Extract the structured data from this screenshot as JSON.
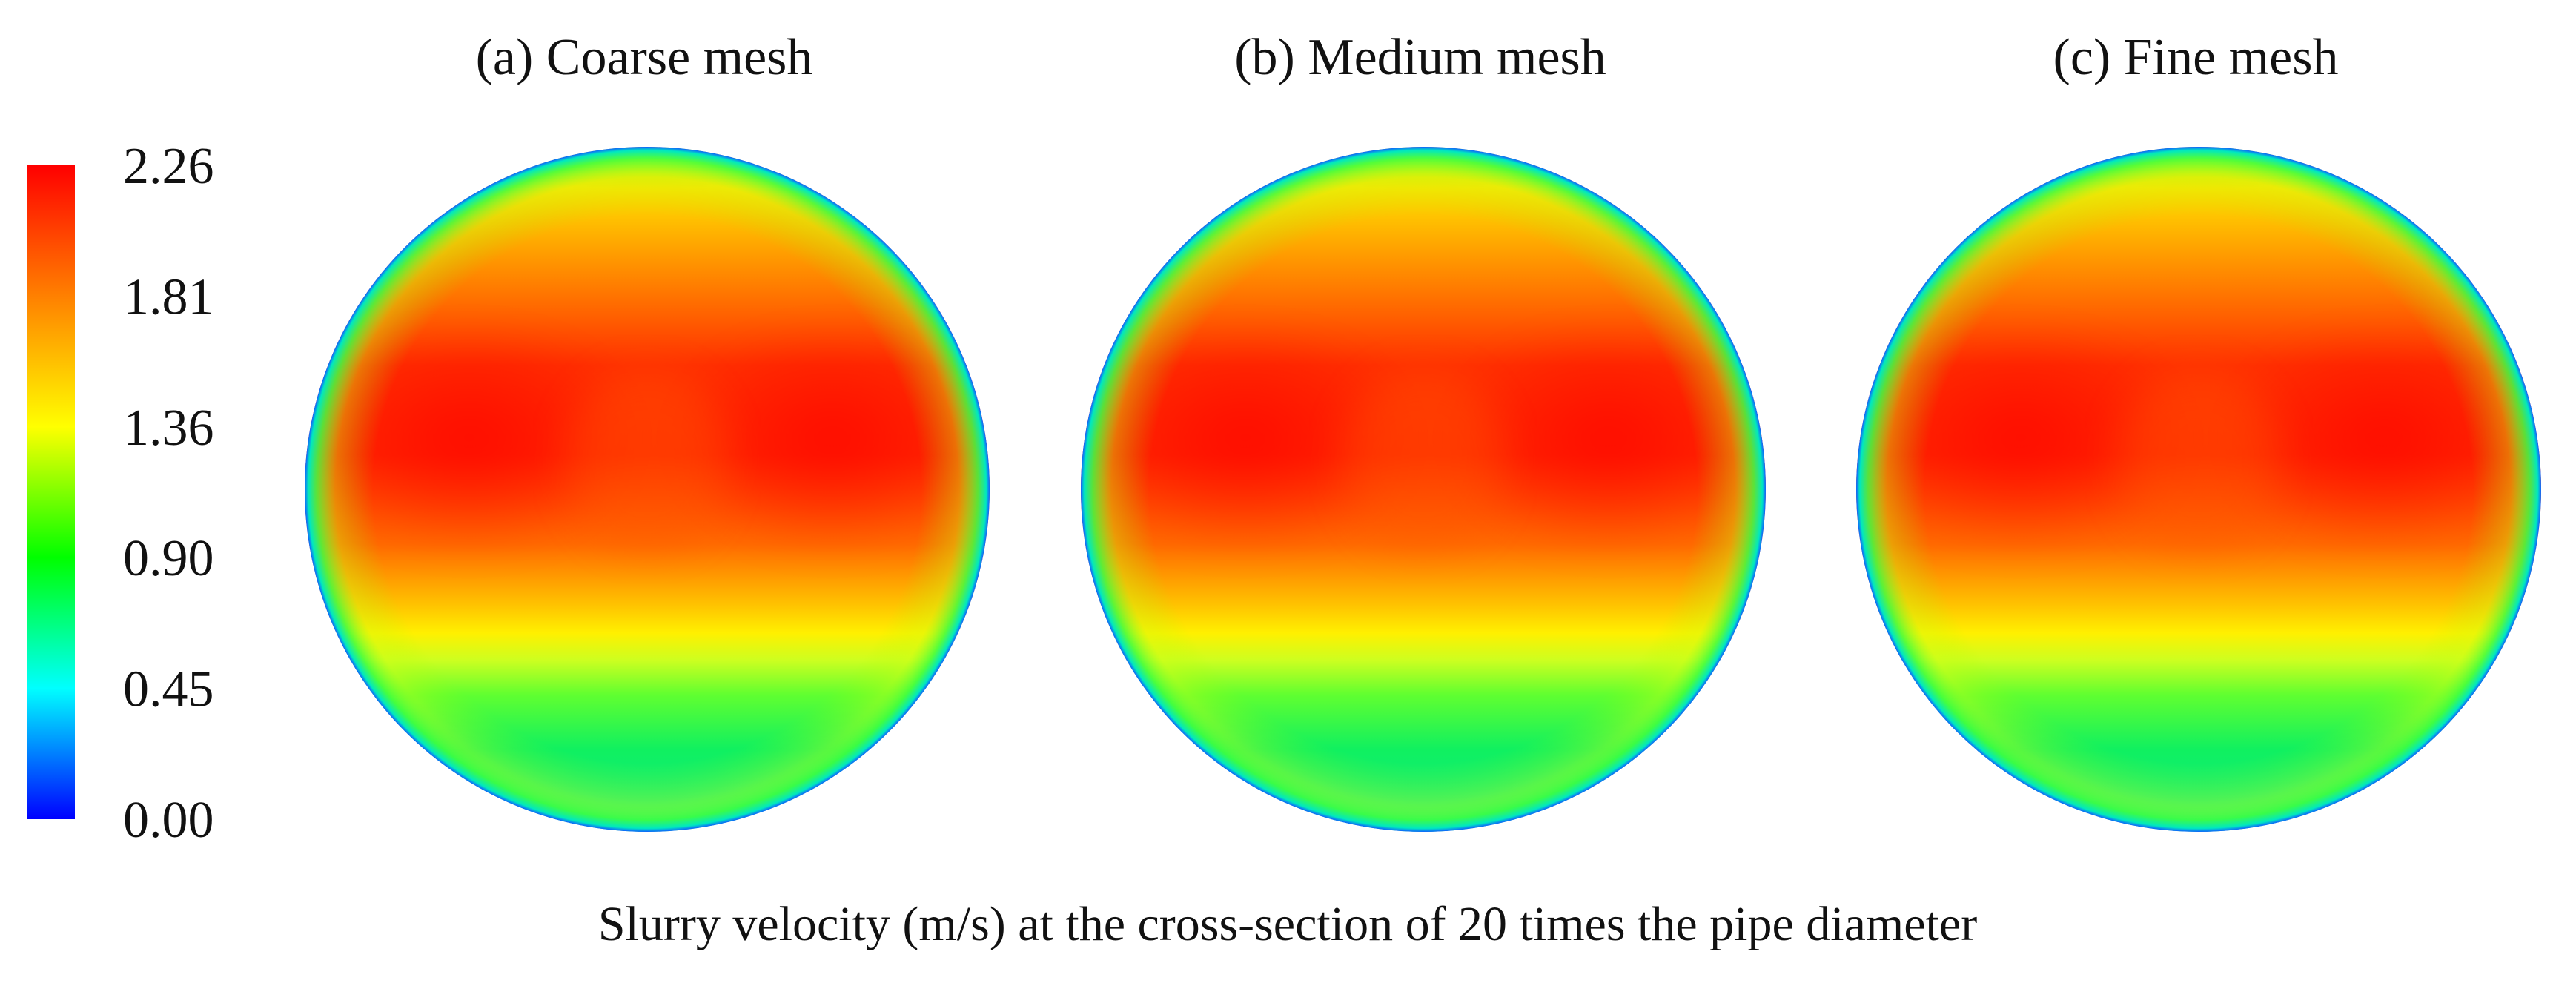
{
  "chart_data": {
    "type": "heatmap",
    "panels": [
      {
        "label": "(a) Coarse mesh"
      },
      {
        "label": "(b) Medium mesh"
      },
      {
        "label": "(c) Fine mesh"
      }
    ],
    "colorbar": {
      "ticks": [
        "2.26",
        "1.81",
        "1.36",
        "0.90",
        "0.45",
        "0.00"
      ],
      "range": [
        0.0,
        2.26
      ],
      "colors": [
        "#0000ff",
        "#00ffff",
        "#00ff00",
        "#ffff00",
        "#ff8000",
        "#ff0000"
      ]
    },
    "caption": "Slurry velocity (m/s) at the cross-section of 20 times the pipe diameter"
  }
}
